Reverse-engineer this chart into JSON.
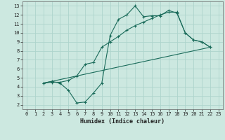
{
  "xlabel": "Humidex (Indice chaleur)",
  "background_color": "#cce8e0",
  "grid_color": "#aed4cc",
  "line_color": "#1a6b5a",
  "xlim": [
    -0.5,
    23.5
  ],
  "ylim": [
    1.5,
    13.5
  ],
  "xticks": [
    0,
    1,
    2,
    3,
    4,
    5,
    6,
    7,
    8,
    9,
    10,
    11,
    12,
    13,
    14,
    15,
    16,
    17,
    18,
    19,
    20,
    21,
    22,
    23
  ],
  "yticks": [
    2,
    3,
    4,
    5,
    6,
    7,
    8,
    9,
    10,
    11,
    12,
    13
  ],
  "line1_x": [
    2,
    3,
    4,
    5,
    6,
    7,
    8,
    9,
    10,
    11,
    12,
    13,
    14,
    15,
    16,
    17,
    18,
    19,
    20,
    21,
    22
  ],
  "line1_y": [
    4.4,
    4.6,
    4.4,
    3.6,
    2.2,
    2.3,
    3.3,
    4.4,
    9.7,
    11.5,
    12.0,
    13.0,
    11.8,
    11.9,
    11.9,
    12.5,
    12.2,
    10.0,
    9.2,
    9.0,
    8.4
  ],
  "line2_x": [
    2,
    3,
    4,
    5,
    6,
    7,
    8,
    9,
    10,
    11,
    12,
    13,
    14,
    15,
    16,
    17,
    18,
    19,
    20,
    21,
    22
  ],
  "line2_y": [
    4.4,
    4.5,
    4.5,
    4.7,
    5.2,
    6.5,
    6.7,
    8.4,
    9.0,
    9.6,
    10.3,
    10.8,
    11.2,
    11.6,
    12.0,
    12.3,
    12.3,
    10.0,
    9.2,
    9.0,
    8.4
  ],
  "line3_x": [
    2,
    22
  ],
  "line3_y": [
    4.4,
    8.4
  ]
}
